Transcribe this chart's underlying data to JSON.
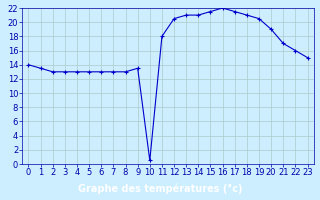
{
  "x": [
    0,
    1,
    2,
    3,
    4,
    5,
    6,
    7,
    8,
    9,
    10,
    11,
    12,
    13,
    14,
    15,
    16,
    17,
    18,
    19,
    20,
    21,
    22,
    23
  ],
  "y": [
    14,
    13.5,
    13,
    13,
    13,
    13,
    13,
    13,
    13,
    13.5,
    0.5,
    18,
    20.5,
    21,
    21,
    21.5,
    22,
    21.5,
    21,
    20.5,
    19,
    17,
    16,
    15
  ],
  "line_color": "#0000cc",
  "marker": "+",
  "marker_size": 3,
  "bg_color": "#cceeff",
  "grid_color": "#aacccc",
  "xlabel": "Graphe des températures (°c)",
  "xlabel_bg": "#0000aa",
  "xlabel_text_color": "#ffffff",
  "xlim": [
    -0.5,
    23.5
  ],
  "ylim": [
    0,
    22
  ],
  "yticks": [
    0,
    2,
    4,
    6,
    8,
    10,
    12,
    14,
    16,
    18,
    20,
    22
  ],
  "xticks": [
    0,
    1,
    2,
    3,
    4,
    5,
    6,
    7,
    8,
    9,
    10,
    11,
    12,
    13,
    14,
    15,
    16,
    17,
    18,
    19,
    20,
    21,
    22,
    23
  ],
  "tick_color": "#0000aa",
  "axis_fontsize": 6,
  "label_fontsize": 7
}
